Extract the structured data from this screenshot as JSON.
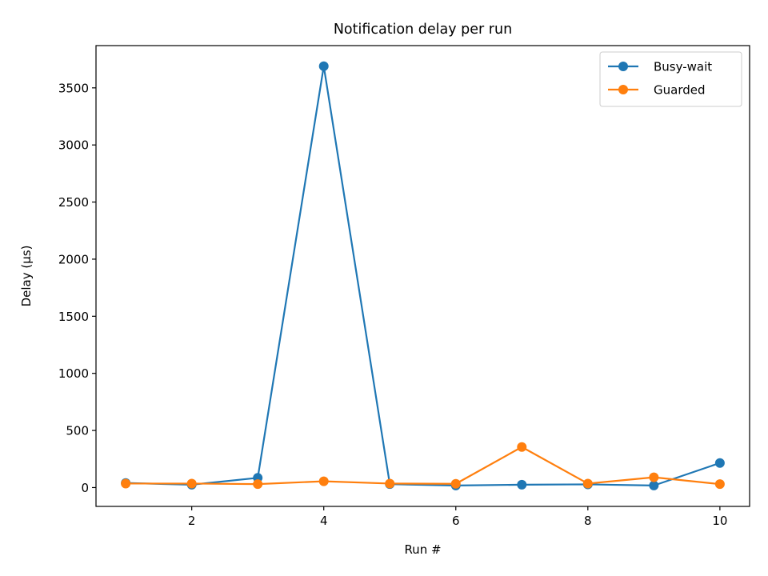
{
  "chart_data": {
    "type": "line",
    "title": "Notification delay per run",
    "xlabel": "Run #",
    "ylabel": "Delay (µs)",
    "x": [
      1,
      2,
      3,
      4,
      5,
      6,
      7,
      8,
      9,
      10
    ],
    "xlim": [
      0.55,
      10.45
    ],
    "ylim": [
      -165,
      3870
    ],
    "xticks": [
      2,
      4,
      6,
      8,
      10
    ],
    "yticks": [
      0,
      500,
      1000,
      1500,
      2000,
      2500,
      3000,
      3500
    ],
    "grid": false,
    "legend_position": "top-right",
    "series": [
      {
        "name": "Busy-wait",
        "color": "#1f77b4",
        "values": [
          40,
          25,
          85,
          3690,
          30,
          18,
          25,
          28,
          18,
          215
        ]
      },
      {
        "name": "Guarded",
        "color": "#ff7f0e",
        "values": [
          35,
          35,
          30,
          55,
          35,
          33,
          355,
          35,
          90,
          30
        ]
      }
    ]
  }
}
